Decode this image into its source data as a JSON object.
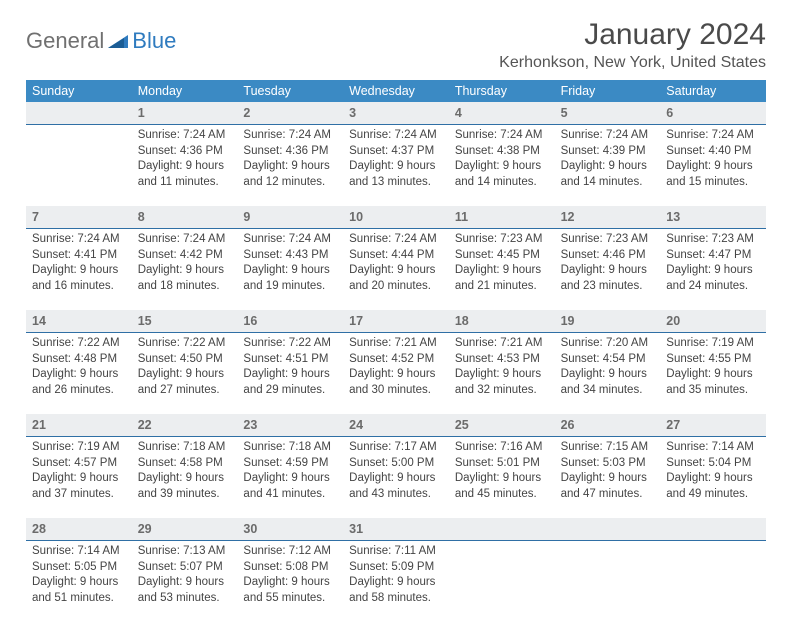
{
  "logo": {
    "general": "General",
    "blue": "Blue"
  },
  "title": "January 2024",
  "location": "Kerhonkson, New York, United States",
  "theme": {
    "header_bg": "#3b8ac4",
    "header_fg": "#ffffff",
    "daynum_bg": "#eceef0",
    "day_border": "#2f6fa5",
    "text": "#444444",
    "title_color": "#4a4a4a",
    "location_color": "#555555"
  },
  "days_of_week": [
    "Sunday",
    "Monday",
    "Tuesday",
    "Wednesday",
    "Thursday",
    "Friday",
    "Saturday"
  ],
  "weeks": [
    [
      {
        "n": "",
        "sunrise": "",
        "sunset": "",
        "daylight1": "",
        "daylight2": ""
      },
      {
        "n": "1",
        "sunrise": "Sunrise: 7:24 AM",
        "sunset": "Sunset: 4:36 PM",
        "daylight1": "Daylight: 9 hours",
        "daylight2": "and 11 minutes."
      },
      {
        "n": "2",
        "sunrise": "Sunrise: 7:24 AM",
        "sunset": "Sunset: 4:36 PM",
        "daylight1": "Daylight: 9 hours",
        "daylight2": "and 12 minutes."
      },
      {
        "n": "3",
        "sunrise": "Sunrise: 7:24 AM",
        "sunset": "Sunset: 4:37 PM",
        "daylight1": "Daylight: 9 hours",
        "daylight2": "and 13 minutes."
      },
      {
        "n": "4",
        "sunrise": "Sunrise: 7:24 AM",
        "sunset": "Sunset: 4:38 PM",
        "daylight1": "Daylight: 9 hours",
        "daylight2": "and 14 minutes."
      },
      {
        "n": "5",
        "sunrise": "Sunrise: 7:24 AM",
        "sunset": "Sunset: 4:39 PM",
        "daylight1": "Daylight: 9 hours",
        "daylight2": "and 14 minutes."
      },
      {
        "n": "6",
        "sunrise": "Sunrise: 7:24 AM",
        "sunset": "Sunset: 4:40 PM",
        "daylight1": "Daylight: 9 hours",
        "daylight2": "and 15 minutes."
      }
    ],
    [
      {
        "n": "7",
        "sunrise": "Sunrise: 7:24 AM",
        "sunset": "Sunset: 4:41 PM",
        "daylight1": "Daylight: 9 hours",
        "daylight2": "and 16 minutes."
      },
      {
        "n": "8",
        "sunrise": "Sunrise: 7:24 AM",
        "sunset": "Sunset: 4:42 PM",
        "daylight1": "Daylight: 9 hours",
        "daylight2": "and 18 minutes."
      },
      {
        "n": "9",
        "sunrise": "Sunrise: 7:24 AM",
        "sunset": "Sunset: 4:43 PM",
        "daylight1": "Daylight: 9 hours",
        "daylight2": "and 19 minutes."
      },
      {
        "n": "10",
        "sunrise": "Sunrise: 7:24 AM",
        "sunset": "Sunset: 4:44 PM",
        "daylight1": "Daylight: 9 hours",
        "daylight2": "and 20 minutes."
      },
      {
        "n": "11",
        "sunrise": "Sunrise: 7:23 AM",
        "sunset": "Sunset: 4:45 PM",
        "daylight1": "Daylight: 9 hours",
        "daylight2": "and 21 minutes."
      },
      {
        "n": "12",
        "sunrise": "Sunrise: 7:23 AM",
        "sunset": "Sunset: 4:46 PM",
        "daylight1": "Daylight: 9 hours",
        "daylight2": "and 23 minutes."
      },
      {
        "n": "13",
        "sunrise": "Sunrise: 7:23 AM",
        "sunset": "Sunset: 4:47 PM",
        "daylight1": "Daylight: 9 hours",
        "daylight2": "and 24 minutes."
      }
    ],
    [
      {
        "n": "14",
        "sunrise": "Sunrise: 7:22 AM",
        "sunset": "Sunset: 4:48 PM",
        "daylight1": "Daylight: 9 hours",
        "daylight2": "and 26 minutes."
      },
      {
        "n": "15",
        "sunrise": "Sunrise: 7:22 AM",
        "sunset": "Sunset: 4:50 PM",
        "daylight1": "Daylight: 9 hours",
        "daylight2": "and 27 minutes."
      },
      {
        "n": "16",
        "sunrise": "Sunrise: 7:22 AM",
        "sunset": "Sunset: 4:51 PM",
        "daylight1": "Daylight: 9 hours",
        "daylight2": "and 29 minutes."
      },
      {
        "n": "17",
        "sunrise": "Sunrise: 7:21 AM",
        "sunset": "Sunset: 4:52 PM",
        "daylight1": "Daylight: 9 hours",
        "daylight2": "and 30 minutes."
      },
      {
        "n": "18",
        "sunrise": "Sunrise: 7:21 AM",
        "sunset": "Sunset: 4:53 PM",
        "daylight1": "Daylight: 9 hours",
        "daylight2": "and 32 minutes."
      },
      {
        "n": "19",
        "sunrise": "Sunrise: 7:20 AM",
        "sunset": "Sunset: 4:54 PM",
        "daylight1": "Daylight: 9 hours",
        "daylight2": "and 34 minutes."
      },
      {
        "n": "20",
        "sunrise": "Sunrise: 7:19 AM",
        "sunset": "Sunset: 4:55 PM",
        "daylight1": "Daylight: 9 hours",
        "daylight2": "and 35 minutes."
      }
    ],
    [
      {
        "n": "21",
        "sunrise": "Sunrise: 7:19 AM",
        "sunset": "Sunset: 4:57 PM",
        "daylight1": "Daylight: 9 hours",
        "daylight2": "and 37 minutes."
      },
      {
        "n": "22",
        "sunrise": "Sunrise: 7:18 AM",
        "sunset": "Sunset: 4:58 PM",
        "daylight1": "Daylight: 9 hours",
        "daylight2": "and 39 minutes."
      },
      {
        "n": "23",
        "sunrise": "Sunrise: 7:18 AM",
        "sunset": "Sunset: 4:59 PM",
        "daylight1": "Daylight: 9 hours",
        "daylight2": "and 41 minutes."
      },
      {
        "n": "24",
        "sunrise": "Sunrise: 7:17 AM",
        "sunset": "Sunset: 5:00 PM",
        "daylight1": "Daylight: 9 hours",
        "daylight2": "and 43 minutes."
      },
      {
        "n": "25",
        "sunrise": "Sunrise: 7:16 AM",
        "sunset": "Sunset: 5:01 PM",
        "daylight1": "Daylight: 9 hours",
        "daylight2": "and 45 minutes."
      },
      {
        "n": "26",
        "sunrise": "Sunrise: 7:15 AM",
        "sunset": "Sunset: 5:03 PM",
        "daylight1": "Daylight: 9 hours",
        "daylight2": "and 47 minutes."
      },
      {
        "n": "27",
        "sunrise": "Sunrise: 7:14 AM",
        "sunset": "Sunset: 5:04 PM",
        "daylight1": "Daylight: 9 hours",
        "daylight2": "and 49 minutes."
      }
    ],
    [
      {
        "n": "28",
        "sunrise": "Sunrise: 7:14 AM",
        "sunset": "Sunset: 5:05 PM",
        "daylight1": "Daylight: 9 hours",
        "daylight2": "and 51 minutes."
      },
      {
        "n": "29",
        "sunrise": "Sunrise: 7:13 AM",
        "sunset": "Sunset: 5:07 PM",
        "daylight1": "Daylight: 9 hours",
        "daylight2": "and 53 minutes."
      },
      {
        "n": "30",
        "sunrise": "Sunrise: 7:12 AM",
        "sunset": "Sunset: 5:08 PM",
        "daylight1": "Daylight: 9 hours",
        "daylight2": "and 55 minutes."
      },
      {
        "n": "31",
        "sunrise": "Sunrise: 7:11 AM",
        "sunset": "Sunset: 5:09 PM",
        "daylight1": "Daylight: 9 hours",
        "daylight2": "and 58 minutes."
      },
      {
        "n": "",
        "sunrise": "",
        "sunset": "",
        "daylight1": "",
        "daylight2": ""
      },
      {
        "n": "",
        "sunrise": "",
        "sunset": "",
        "daylight1": "",
        "daylight2": ""
      },
      {
        "n": "",
        "sunrise": "",
        "sunset": "",
        "daylight1": "",
        "daylight2": ""
      }
    ]
  ]
}
